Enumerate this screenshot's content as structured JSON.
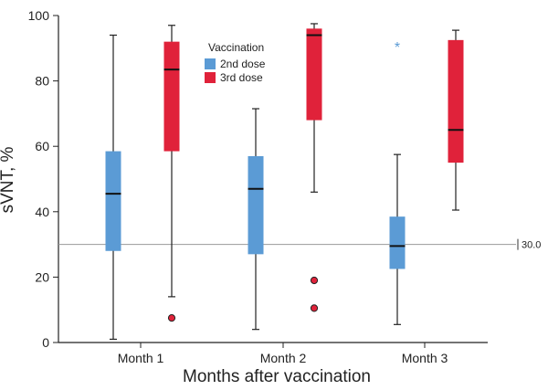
{
  "chart_data": {
    "type": "boxplot",
    "title": "",
    "xlabel": "Months after vaccination",
    "ylabel": "sVNT, %",
    "ylim": [
      0,
      100
    ],
    "yticks": [
      0,
      20,
      40,
      60,
      80,
      100
    ],
    "categories": [
      "Month 1",
      "Month 2",
      "Month 3"
    ],
    "legend": {
      "title": "Vaccination",
      "position": "top-center"
    },
    "reference_line": {
      "value": 30.0,
      "label": "30.0"
    },
    "series": [
      {
        "name": "2nd dose",
        "color": "#5b9bd5",
        "boxes": [
          {
            "min": 1.0,
            "q1": 28.0,
            "median": 45.5,
            "q3": 58.5,
            "max": 94.0,
            "outliers": [],
            "extremes": []
          },
          {
            "min": 4.0,
            "q1": 27.0,
            "median": 47.0,
            "q3": 57.0,
            "max": 71.5,
            "outliers": [],
            "extremes": []
          },
          {
            "min": 5.5,
            "q1": 22.5,
            "median": 29.5,
            "q3": 38.5,
            "max": 57.5,
            "outliers": [],
            "extremes": [
              91.0
            ]
          }
        ]
      },
      {
        "name": "3rd dose",
        "color": "#e0223a",
        "boxes": [
          {
            "min": 14.0,
            "q1": 58.5,
            "median": 83.5,
            "q3": 92.0,
            "max": 97.0,
            "outliers": [
              7.5
            ],
            "extremes": []
          },
          {
            "min": 46.0,
            "q1": 68.0,
            "median": 94.0,
            "q3": 96.0,
            "max": 97.5,
            "outliers": [
              19.0,
              10.5
            ],
            "extremes": []
          },
          {
            "min": 40.5,
            "q1": 55.0,
            "median": 65.0,
            "q3": 92.5,
            "max": 95.5,
            "outliers": [],
            "extremes": []
          }
        ]
      }
    ]
  }
}
